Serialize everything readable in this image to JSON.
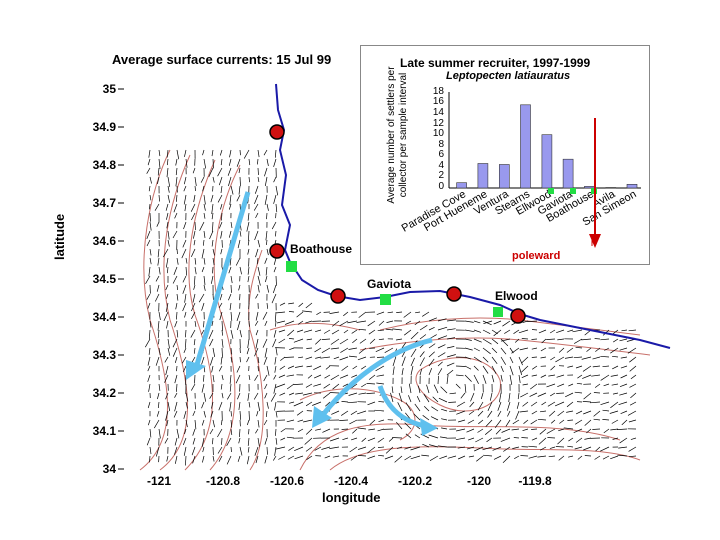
{
  "map": {
    "title": "Average surface currents:  15 Jul 99",
    "xlabel": "longitude",
    "ylabel": "latitude",
    "yticks": [
      "35",
      "34.9",
      "34.8",
      "34.7",
      "34.6",
      "34.5",
      "34.4",
      "34.3",
      "34.2",
      "34.1",
      "34"
    ],
    "xticks": [
      "-121",
      "-120.8",
      "-120.6",
      "-120.4",
      "-120.2",
      "-120",
      "-119.8"
    ],
    "site_labels": {
      "boathouse": "Boathouse",
      "gaviota": "Gaviota",
      "elwood": "Elwood"
    },
    "colors": {
      "coast": "#1a1aa8",
      "bathymetry": "#c8706a",
      "arrows": "#5fc0ee",
      "site_marker": "#d01010",
      "collector": "#22dd44",
      "vectors": "#000000"
    }
  },
  "inset": {
    "title": "Late summer  recruiter, 1997-1999",
    "species": "Leptopecten latiauratus",
    "ylabel": "Average number of settlers per collector per sample interval",
    "poleward": "poleward",
    "colors": {
      "bar": "#9999ee",
      "poleward_arrow": "#cc0000"
    }
  },
  "chart_data": {
    "type": "bar",
    "title": "Late summer  recruiter, 1997-1999",
    "subtitle": "Leptopecten latiauratus",
    "ylabel": "Average number of settlers per collector per sample interval",
    "ylim": [
      0,
      18
    ],
    "yticks": [
      "18",
      "16",
      "14",
      "12",
      "10",
      "8",
      "6",
      "4",
      "2",
      "0"
    ],
    "categories": [
      "Paradise Cove",
      "Port Hueneme",
      "Ventura",
      "Stearns",
      "Ellwood",
      "Gaviota",
      "Boathouse",
      "Avila",
      "San Simeon"
    ],
    "values": [
      1,
      4.6,
      4.4,
      15.6,
      10,
      5.4,
      0.3,
      0.1,
      0.7
    ]
  }
}
